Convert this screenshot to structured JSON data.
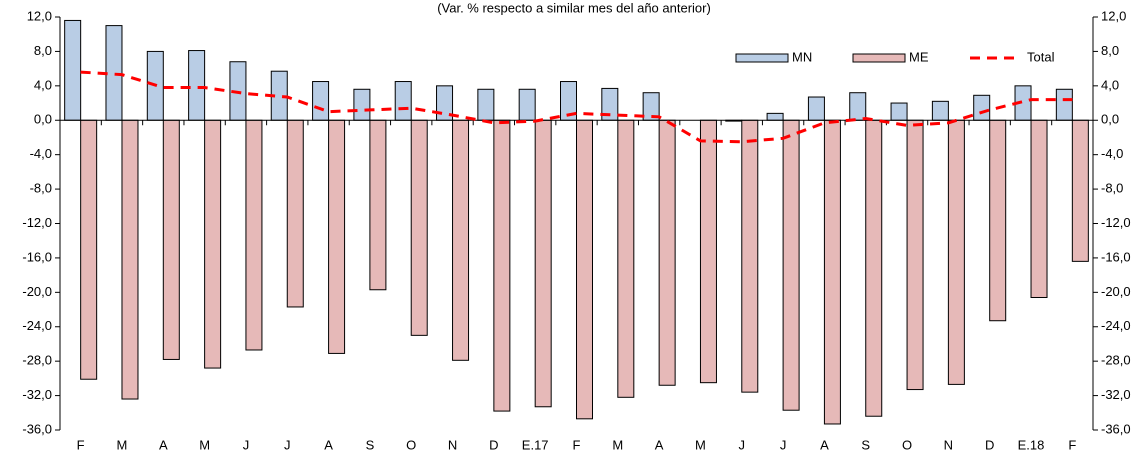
{
  "chart_data": {
    "type": "bar",
    "subtitle": "(Var. % respecto a similar mes del año anterior)",
    "categories": [
      "F",
      "M",
      "A",
      "M",
      "J",
      "J",
      "A",
      "S",
      "O",
      "N",
      "D",
      "E.17",
      "F",
      "M",
      "A",
      "M",
      "J",
      "J",
      "A",
      "S",
      "O",
      "N",
      "D",
      "E.18",
      "F"
    ],
    "series": [
      {
        "name": "MN",
        "color": "#b9cde5",
        "type": "bar",
        "values": [
          11.6,
          11.0,
          8.0,
          8.1,
          6.8,
          5.7,
          4.5,
          3.6,
          4.5,
          4.0,
          3.6,
          3.6,
          4.5,
          3.7,
          3.2,
          0.0,
          -0.1,
          0.8,
          2.7,
          3.2,
          2.0,
          2.2,
          2.9,
          4.0,
          3.6
        ]
      },
      {
        "name": "ME",
        "color": "#e6b9b8",
        "type": "bar",
        "values": [
          -30.1,
          -32.4,
          -27.8,
          -28.8,
          -26.7,
          -21.7,
          -27.1,
          -19.7,
          -25.0,
          -27.9,
          -33.8,
          -33.3,
          -34.7,
          -32.2,
          -30.8,
          -30.5,
          -31.6,
          -33.7,
          -35.3,
          -34.4,
          -31.3,
          -30.7,
          -23.3,
          -20.6,
          -16.4
        ]
      },
      {
        "name": "Total",
        "color": "#ff0000",
        "type": "line",
        "values": [
          5.6,
          5.3,
          3.8,
          3.8,
          3.1,
          2.7,
          1.0,
          1.2,
          1.4,
          0.6,
          -0.3,
          -0.1,
          0.8,
          0.6,
          0.4,
          -2.4,
          -2.5,
          -2.1,
          -0.3,
          0.2,
          -0.6,
          -0.3,
          1.2,
          2.4,
          2.4
        ]
      }
    ],
    "ylim": [
      -36,
      12
    ],
    "yticks": [
      {
        "value": 12,
        "label": "12,0"
      },
      {
        "value": 8,
        "label": "8,0"
      },
      {
        "value": 4,
        "label": "4,0"
      },
      {
        "value": 0,
        "label": "0,0"
      },
      {
        "value": -4,
        "label": "-4,0"
      },
      {
        "value": -8,
        "label": "-8,0"
      },
      {
        "value": -12,
        "label": "-12,0"
      },
      {
        "value": -16,
        "label": "-16,0"
      },
      {
        "value": -20,
        "label": "-20,0"
      },
      {
        "value": -24,
        "label": "-24,0"
      },
      {
        "value": -28,
        "label": "-28,0"
      },
      {
        "value": -32,
        "label": "-32,0"
      },
      {
        "value": -36,
        "label": "-36,0"
      }
    ],
    "y2lim": [
      -36,
      12
    ],
    "y2ticks": [
      {
        "value": 12,
        "label": "12,0"
      },
      {
        "value": 8,
        "label": "8,0"
      },
      {
        "value": 4,
        "label": "4,0"
      },
      {
        "value": 0,
        "label": "0,0"
      },
      {
        "value": -4,
        "label": "-4,0"
      },
      {
        "value": -8,
        "label": "-8,0"
      },
      {
        "value": -12,
        "label": "-12,0"
      },
      {
        "value": -16,
        "label": "-16,0"
      },
      {
        "value": -20,
        "label": "-20,0"
      },
      {
        "value": -24,
        "label": "-24,0"
      },
      {
        "value": -28,
        "label": "-28,0"
      },
      {
        "value": -32,
        "label": "-32,0"
      },
      {
        "value": -36,
        "label": "-36,0"
      }
    ],
    "legend": "upper right",
    "grid": false
  }
}
